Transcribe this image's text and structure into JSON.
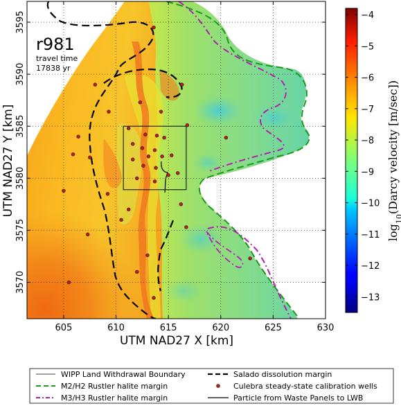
{
  "chart_data": {
    "type": "heatmap",
    "map_label": "r981",
    "annotation_line1": "travel time",
    "annotation_line2": "17838 yr",
    "xlabel": "UTM NAD27 X [km]",
    "ylabel": "UTM NAD27 Y [km]",
    "xlim": [
      601.5,
      630
    ],
    "ylim": [
      3566.5,
      3597
    ],
    "xticks": [
      605,
      610,
      615,
      620,
      625,
      630
    ],
    "yticks": [
      3570,
      3575,
      3580,
      3585,
      3590,
      3595
    ],
    "grid": true,
    "colorbar": {
      "label_prefix": "log",
      "label_sub": "10",
      "label_rest": "(Darcy velocity [m/sec])",
      "range": [
        -13.5,
        -3.8
      ],
      "ticks": [
        -4,
        -5,
        -6,
        -7,
        -8,
        -9,
        -10,
        -11,
        -12,
        -13
      ],
      "colormap": "jet"
    },
    "wipp_boundary": {
      "x": [
        610.7,
        616.7
      ],
      "y": [
        3578.9,
        3585.0
      ]
    },
    "wells": [
      [
        613.6,
        3594.5
      ],
      [
        608.0,
        3589.0
      ],
      [
        616.3,
        3589.0
      ],
      [
        612.3,
        3587.3
      ],
      [
        609.3,
        3586.4
      ],
      [
        614.3,
        3586.4
      ],
      [
        611.2,
        3584.8
      ],
      [
        616.8,
        3585.1
      ],
      [
        612.8,
        3584.2
      ],
      [
        613.9,
        3584.1
      ],
      [
        614.6,
        3583.9
      ],
      [
        611.6,
        3583.3
      ],
      [
        612.5,
        3582.9
      ],
      [
        613.7,
        3582.7
      ],
      [
        613.1,
        3582.1
      ],
      [
        614.4,
        3582.1
      ],
      [
        615.3,
        3582.2
      ],
      [
        611.6,
        3581.8
      ],
      [
        612.6,
        3581.2
      ],
      [
        613.8,
        3581.0
      ],
      [
        615.0,
        3580.3
      ],
      [
        615.9,
        3580.5
      ],
      [
        612.0,
        3580.0
      ],
      [
        613.7,
        3579.7
      ],
      [
        620.5,
        3583.9
      ],
      [
        606.4,
        3584.0
      ],
      [
        605.9,
        3582.3
      ],
      [
        607.5,
        3582.0
      ],
      [
        605.0,
        3578.8
      ],
      [
        609.2,
        3578.5
      ],
      [
        610.5,
        3576.0
      ],
      [
        611.2,
        3577.0
      ],
      [
        616.2,
        3577.5
      ],
      [
        616.7,
        3575.3
      ],
      [
        607.3,
        3574.6
      ],
      [
        613.0,
        3572.6
      ],
      [
        612.0,
        3571.0
      ],
      [
        613.6,
        3568.5
      ],
      [
        605.5,
        3570.0
      ],
      [
        622.8,
        3572.3
      ]
    ],
    "legend": [
      {
        "label": "WIPP Land Withdrawal Boundary",
        "color": "#000000",
        "style": "thin"
      },
      {
        "label": "Salado dissolution margin",
        "color": "#000000",
        "style": "dashed-thick"
      },
      {
        "label": "M2/H2 Rustler halite margin",
        "color": "#1a9a1a",
        "style": "dashed"
      },
      {
        "label": "Culebra steady-state calibration wells",
        "color": "#b22222",
        "style": "marker"
      },
      {
        "label": "M3/H3 Rustler halite margin",
        "color": "#b020b0",
        "style": "dashdot"
      },
      {
        "label": "Particle from Waste Panels to LWB",
        "color": "#000000",
        "style": "solid"
      }
    ]
  }
}
